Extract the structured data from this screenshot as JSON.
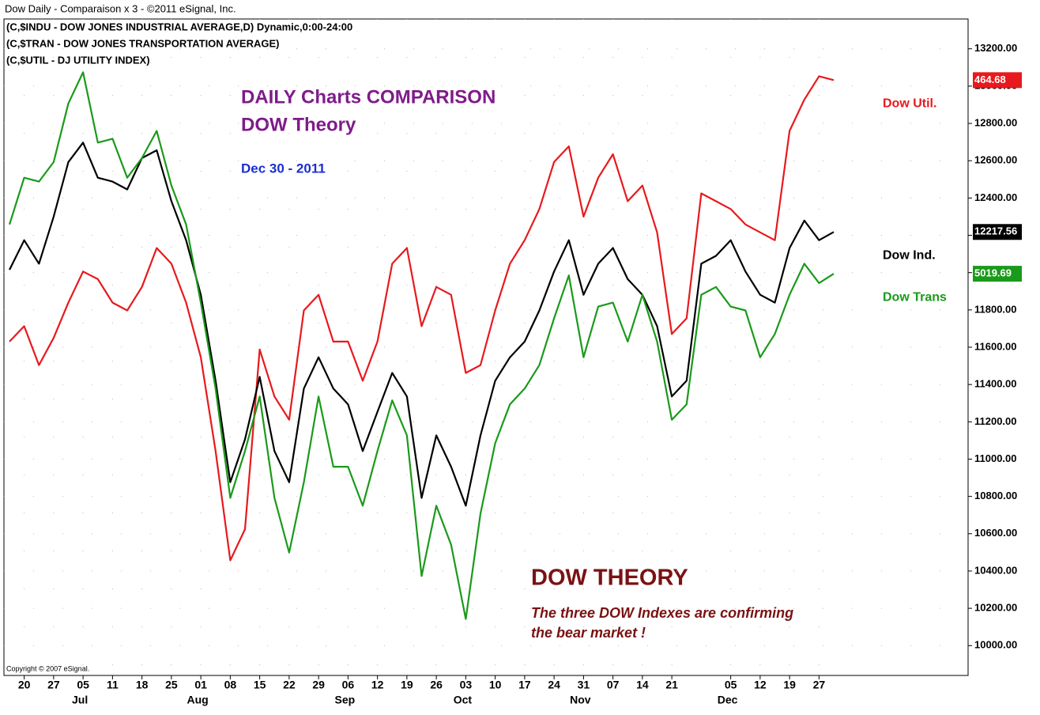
{
  "chart_data": {
    "type": "line",
    "title": "Dow Daily - Comparaison x 3 - ©2011 eSignal, Inc.",
    "subtitles": [
      "(C,$INDU - DOW JONES INDUSTRIAL AVERAGE,D) Dynamic,0:00-24:00",
      "(C,$TRAN - DOW JONES TRANSPORTATION AVERAGE)",
      "(C,$UTIL - DJ UTILITY INDEX)"
    ],
    "annotations": {
      "heading": [
        "DAILY Charts COMPARISON",
        "DOW Theory"
      ],
      "date": "Dec 30 - 2011",
      "theory_title": "DOW THEORY",
      "theory_text": [
        "The three DOW Indexes are confirming",
        "the bear market !"
      ],
      "copyright": "Copyright © 2007 eSignal."
    },
    "categories": [
      null,
      "20",
      null,
      "27",
      null,
      "05",
      null,
      "11",
      null,
      "18",
      null,
      "25",
      null,
      "01",
      null,
      "08",
      null,
      "15",
      null,
      "22",
      null,
      "29",
      null,
      "06",
      null,
      "12",
      null,
      "19",
      null,
      "26",
      null,
      "03",
      null,
      "10",
      null,
      "17",
      null,
      "24",
      null,
      "31",
      null,
      "07",
      null,
      "14",
      null,
      "21",
      null,
      null,
      null,
      "05",
      null,
      "12",
      null,
      "19",
      null,
      "27",
      null
    ],
    "months": [
      null,
      null,
      null,
      null,
      null,
      "Jul",
      null,
      null,
      null,
      null,
      null,
      null,
      null,
      "Aug",
      null,
      null,
      null,
      null,
      null,
      null,
      null,
      null,
      null,
      "Sep",
      null,
      null,
      null,
      null,
      null,
      null,
      null,
      "Oct",
      null,
      null,
      null,
      null,
      null,
      null,
      null,
      "Nov",
      null,
      null,
      null,
      null,
      null,
      null,
      null,
      null,
      null,
      "Dec",
      null,
      null,
      null,
      null,
      null,
      null,
      null
    ],
    "series": [
      {
        "name": "Dow Util.",
        "color": "#e8191c",
        "last_label": "464.68",
        "values": [
          11630,
          11713,
          11504,
          11650,
          11839,
          12006,
          11965,
          11839,
          11797,
          11923,
          12132,
          12048,
          11839,
          11546,
          11043,
          10457,
          10624,
          11588,
          11336,
          11211,
          11797,
          11881,
          11630,
          11630,
          11420,
          11630,
          12048,
          12132,
          11713,
          11923,
          11881,
          11462,
          11504,
          11797,
          12048,
          12174,
          12341,
          12593,
          12677,
          12300,
          12509,
          12635,
          12383,
          12467,
          12216,
          11671,
          11755,
          12425,
          12383,
          12341,
          12258,
          12216,
          12174,
          12760,
          12928,
          13053,
          13032
        ]
      },
      {
        "name": "Dow Ind.",
        "color": "#000000",
        "last_label": "12217.56",
        "values": [
          12015,
          12174,
          12048,
          12300,
          12593,
          12697,
          12509,
          12488,
          12446,
          12614,
          12656,
          12383,
          12174,
          11881,
          11420,
          10876,
          11106,
          11441,
          11043,
          10876,
          11378,
          11546,
          11378,
          11294,
          11043,
          11253,
          11462,
          11336,
          10792,
          11127,
          10959,
          10750,
          11127,
          11420,
          11546,
          11630,
          11797,
          12006,
          12174,
          11881,
          12048,
          12132,
          11965,
          11881,
          11713,
          11336,
          11420,
          12048,
          12090,
          12174,
          12006,
          11881,
          11839,
          12132,
          12279,
          12174,
          12218
        ]
      },
      {
        "name": "Dow Trans",
        "color": "#1a9a1a",
        "last_label": "5019.69",
        "values": [
          12258,
          12509,
          12488,
          12593,
          12907,
          13074,
          12697,
          12718,
          12509,
          12614,
          12760,
          12467,
          12258,
          11839,
          11378,
          10792,
          11043,
          11336,
          10792,
          10499,
          10876,
          11336,
          10959,
          10959,
          10750,
          11043,
          11315,
          11127,
          10373,
          10750,
          10541,
          10143,
          10708,
          11085,
          11294,
          11378,
          11504,
          11755,
          11985,
          11546,
          11818,
          11839,
          11630,
          11881,
          11630,
          11211,
          11294,
          11881,
          11923,
          11818,
          11797,
          11546,
          11671,
          11881,
          12048,
          11944,
          11994
        ]
      }
    ],
    "ylim": [
      9840,
      13360
    ],
    "yticks": [
      {
        "value": 10000,
        "label": "10000.00"
      },
      {
        "value": 10200,
        "label": "10200.00"
      },
      {
        "value": 10400,
        "label": "10400.00"
      },
      {
        "value": 10600,
        "label": "10600.00"
      },
      {
        "value": 10800,
        "label": "10800.00"
      },
      {
        "value": 11000,
        "label": "11000.00"
      },
      {
        "value": 11200,
        "label": "11200.00"
      },
      {
        "value": 11400,
        "label": "11400.00"
      },
      {
        "value": 11600,
        "label": "11600.00"
      },
      {
        "value": 11800,
        "label": "11800.00"
      },
      {
        "value": 12000,
        "label": "12000.00"
      },
      {
        "value": 12200,
        "label": "12200.00"
      },
      {
        "value": 12400,
        "label": "12400.00"
      },
      {
        "value": 12600,
        "label": "12600.00"
      },
      {
        "value": 12800,
        "label": "12800.00"
      },
      {
        "value": 13000,
        "label": "13000.00"
      },
      {
        "value": 13200,
        "label": "13200.00"
      }
    ],
    "grid": true
  }
}
